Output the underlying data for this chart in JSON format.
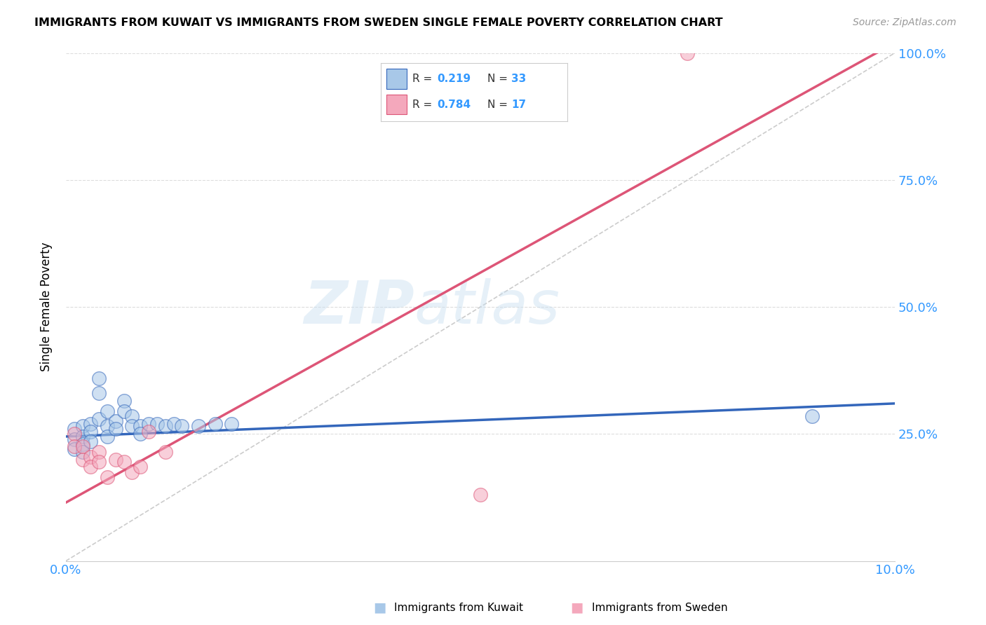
{
  "title": "IMMIGRANTS FROM KUWAIT VS IMMIGRANTS FROM SWEDEN SINGLE FEMALE POVERTY CORRELATION CHART",
  "source": "Source: ZipAtlas.com",
  "ylabel": "Single Female Poverty",
  "xmin": 0.0,
  "xmax": 0.1,
  "ymin": 0.0,
  "ymax": 1.0,
  "color_kuwait": "#a8c8e8",
  "color_sweden": "#f4a8bc",
  "color_line_kuwait": "#3366bb",
  "color_line_sweden": "#dd5577",
  "color_diag": "#cccccc",
  "kw_line": [
    0.0,
    0.1,
    0.245,
    0.31
  ],
  "sw_line": [
    0.0,
    0.1,
    0.115,
    1.02
  ],
  "diag_line": [
    0.0,
    0.1,
    0.0,
    1.0
  ],
  "kuwait_x": [
    0.001,
    0.001,
    0.001,
    0.002,
    0.002,
    0.002,
    0.002,
    0.003,
    0.003,
    0.003,
    0.004,
    0.004,
    0.004,
    0.005,
    0.005,
    0.005,
    0.006,
    0.006,
    0.007,
    0.007,
    0.008,
    0.008,
    0.009,
    0.009,
    0.01,
    0.011,
    0.012,
    0.013,
    0.014,
    0.016,
    0.018,
    0.02,
    0.09
  ],
  "kuwait_y": [
    0.26,
    0.24,
    0.22,
    0.265,
    0.245,
    0.23,
    0.215,
    0.27,
    0.255,
    0.235,
    0.36,
    0.33,
    0.28,
    0.295,
    0.265,
    0.245,
    0.275,
    0.26,
    0.315,
    0.295,
    0.285,
    0.265,
    0.265,
    0.25,
    0.27,
    0.27,
    0.265,
    0.27,
    0.265,
    0.265,
    0.27,
    0.27,
    0.285
  ],
  "sweden_x": [
    0.001,
    0.001,
    0.002,
    0.002,
    0.003,
    0.003,
    0.004,
    0.004,
    0.005,
    0.006,
    0.007,
    0.008,
    0.009,
    0.01,
    0.012,
    0.05,
    0.075
  ],
  "sweden_y": [
    0.25,
    0.225,
    0.225,
    0.2,
    0.205,
    0.185,
    0.215,
    0.195,
    0.165,
    0.2,
    0.195,
    0.175,
    0.185,
    0.255,
    0.215,
    0.13,
    1.0
  ]
}
